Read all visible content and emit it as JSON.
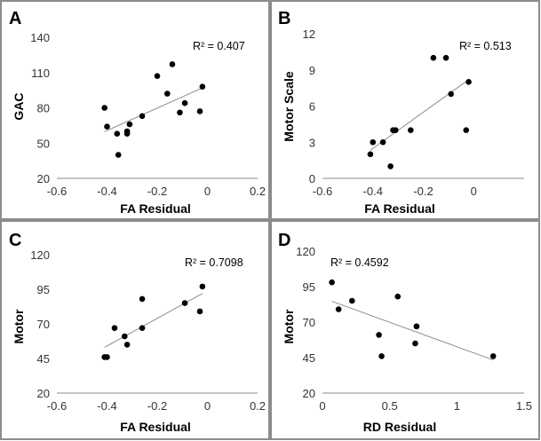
{
  "chart_data": [
    {
      "type": "scatter",
      "panel_label": "A",
      "xlabel": "FA Residual",
      "ylabel": "GAC",
      "xlim": [
        -0.6,
        0.2
      ],
      "ylim": [
        20,
        140
      ],
      "xticks": [
        "-0.6",
        "-0.4",
        "-0.2",
        "0",
        "0.2"
      ],
      "yticks": [
        "20",
        "50",
        "80",
        "110",
        "140"
      ],
      "r2_label": "R² = 0.407",
      "trendline": true,
      "points": [
        {
          "x": -0.41,
          "y": 80
        },
        {
          "x": -0.4,
          "y": 64
        },
        {
          "x": -0.36,
          "y": 58
        },
        {
          "x": -0.355,
          "y": 40
        },
        {
          "x": -0.32,
          "y": 60
        },
        {
          "x": -0.32,
          "y": 58
        },
        {
          "x": -0.31,
          "y": 66
        },
        {
          "x": -0.26,
          "y": 73
        },
        {
          "x": -0.2,
          "y": 107
        },
        {
          "x": -0.16,
          "y": 92
        },
        {
          "x": -0.14,
          "y": 117
        },
        {
          "x": -0.11,
          "y": 76
        },
        {
          "x": -0.09,
          "y": 84
        },
        {
          "x": -0.03,
          "y": 77
        },
        {
          "x": -0.02,
          "y": 98
        }
      ]
    },
    {
      "type": "scatter",
      "panel_label": "B",
      "xlabel": "FA Residual",
      "ylabel": "Motor Scale",
      "xlim": [
        -0.6,
        0.2
      ],
      "ylim": [
        0,
        12
      ],
      "xticks": [
        "-0.6",
        "-0.4",
        "-0.2",
        "0"
      ],
      "yticks": [
        "0",
        "3",
        "6",
        "9",
        "12"
      ],
      "r2_label": "R² = 0.513",
      "trendline": true,
      "points": [
        {
          "x": -0.41,
          "y": 2
        },
        {
          "x": -0.4,
          "y": 3
        },
        {
          "x": -0.36,
          "y": 3
        },
        {
          "x": -0.33,
          "y": 1
        },
        {
          "x": -0.32,
          "y": 4
        },
        {
          "x": -0.31,
          "y": 4
        },
        {
          "x": -0.25,
          "y": 4
        },
        {
          "x": -0.16,
          "y": 10
        },
        {
          "x": -0.11,
          "y": 10
        },
        {
          "x": -0.09,
          "y": 7
        },
        {
          "x": -0.02,
          "y": 8
        },
        {
          "x": -0.03,
          "y": 4
        }
      ]
    },
    {
      "type": "scatter",
      "panel_label": "C",
      "xlabel": "FA Residual",
      "ylabel": "Motor",
      "xlim": [
        -0.6,
        0.2
      ],
      "ylim": [
        20,
        120
      ],
      "xticks": [
        "-0.6",
        "-0.4",
        "-0.2",
        "0",
        "0.2"
      ],
      "yticks": [
        "20",
        "45",
        "70",
        "95",
        "120"
      ],
      "r2_label": "R² = 0.7098",
      "trendline": true,
      "points": [
        {
          "x": -0.41,
          "y": 46
        },
        {
          "x": -0.4,
          "y": 46
        },
        {
          "x": -0.37,
          "y": 67
        },
        {
          "x": -0.33,
          "y": 61
        },
        {
          "x": -0.32,
          "y": 55
        },
        {
          "x": -0.26,
          "y": 67
        },
        {
          "x": -0.26,
          "y": 88
        },
        {
          "x": -0.09,
          "y": 85
        },
        {
          "x": -0.03,
          "y": 79
        },
        {
          "x": -0.02,
          "y": 97
        }
      ]
    },
    {
      "type": "scatter",
      "panel_label": "D",
      "xlabel": "RD Residual",
      "ylabel": "Motor",
      "xlim": [
        0,
        1.5
      ],
      "ylim": [
        20,
        120
      ],
      "xticks": [
        "0",
        "0.5",
        "1",
        "1.5"
      ],
      "yticks": [
        "20",
        "45",
        "70",
        "95",
        "120"
      ],
      "r2_label": "R² = 0.4592",
      "trendline": true,
      "points": [
        {
          "x": 0.07,
          "y": 98
        },
        {
          "x": 0.12,
          "y": 79
        },
        {
          "x": 0.22,
          "y": 85
        },
        {
          "x": 0.42,
          "y": 61
        },
        {
          "x": 0.44,
          "y": 46
        },
        {
          "x": 0.56,
          "y": 88
        },
        {
          "x": 0.69,
          "y": 55
        },
        {
          "x": 0.7,
          "y": 67
        },
        {
          "x": 0.7,
          "y": 67
        },
        {
          "x": 1.27,
          "y": 46
        }
      ]
    }
  ]
}
